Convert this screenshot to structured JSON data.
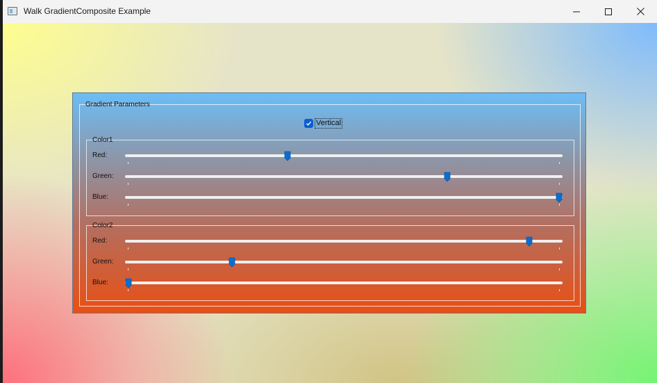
{
  "window": {
    "title": "Walk GradientComposite Example",
    "icon": "app-window-icon",
    "controls": [
      "minimize-icon",
      "maximize-icon",
      "close-icon"
    ]
  },
  "gradient_parameters": {
    "title": "Gradient Parameters",
    "vertical": {
      "label": "Vertical",
      "checked": true
    },
    "color1": {
      "title": "Color1",
      "sliders": [
        {
          "label": "Red:",
          "value_fraction": 0.37
        },
        {
          "label": "Green:",
          "value_fraction": 0.74
        },
        {
          "label": "Blue:",
          "value_fraction": 1.0
        }
      ]
    },
    "color2": {
      "title": "Color2",
      "sliders": [
        {
          "label": "Red:",
          "value_fraction": 0.93
        },
        {
          "label": "Green:",
          "value_fraction": 0.24
        },
        {
          "label": "Blue:",
          "value_fraction": 0.0
        }
      ]
    }
  },
  "colors": {
    "accent": "#0a6ed1",
    "checkbox": "#0a5fd0",
    "panel_top": "#6cbdf6",
    "panel_bottom": "#e94f14"
  }
}
